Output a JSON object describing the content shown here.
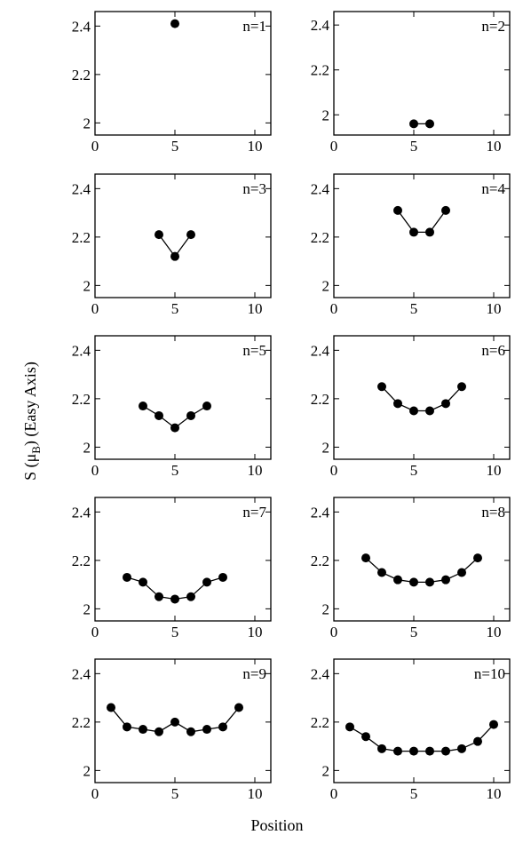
{
  "figure": {
    "ylabel_main": "S (μ",
    "ylabel_sub": "B",
    "ylabel_rest": ") (Easy Axis)",
    "xlabel": "Position"
  },
  "chart_data": [
    {
      "type": "line",
      "label": "n=1",
      "x": [
        5
      ],
      "y": [
        2.41
      ],
      "xlim": [
        0,
        11
      ],
      "ylim": [
        1.95,
        2.46
      ],
      "xticks": [
        0,
        5,
        10
      ],
      "yticks": [
        2.0,
        2.2,
        2.4
      ]
    },
    {
      "type": "line",
      "label": "n=2",
      "x": [
        5,
        6
      ],
      "y": [
        1.96,
        1.96
      ],
      "xlim": [
        0,
        11
      ],
      "ylim": [
        1.91,
        2.46
      ],
      "xticks": [
        0,
        5,
        10
      ],
      "yticks": [
        2.0,
        2.2,
        2.4
      ]
    },
    {
      "type": "line",
      "label": "n=3",
      "x": [
        4,
        5,
        6
      ],
      "y": [
        2.21,
        2.12,
        2.21
      ],
      "xlim": [
        0,
        11
      ],
      "ylim": [
        1.95,
        2.46
      ],
      "xticks": [
        0,
        5,
        10
      ],
      "yticks": [
        2.0,
        2.2,
        2.4
      ]
    },
    {
      "type": "line",
      "label": "n=4",
      "x": [
        4,
        5,
        6,
        7
      ],
      "y": [
        2.31,
        2.22,
        2.22,
        2.31
      ],
      "xlim": [
        0,
        11
      ],
      "ylim": [
        1.95,
        2.46
      ],
      "xticks": [
        0,
        5,
        10
      ],
      "yticks": [
        2.0,
        2.2,
        2.4
      ]
    },
    {
      "type": "line",
      "label": "n=5",
      "x": [
        3,
        4,
        5,
        6,
        7
      ],
      "y": [
        2.17,
        2.13,
        2.08,
        2.13,
        2.17
      ],
      "xlim": [
        0,
        11
      ],
      "ylim": [
        1.95,
        2.46
      ],
      "xticks": [
        0,
        5,
        10
      ],
      "yticks": [
        2.0,
        2.2,
        2.4
      ]
    },
    {
      "type": "line",
      "label": "n=6",
      "x": [
        3,
        4,
        5,
        6,
        7,
        8
      ],
      "y": [
        2.25,
        2.18,
        2.15,
        2.15,
        2.18,
        2.25
      ],
      "xlim": [
        0,
        11
      ],
      "ylim": [
        1.95,
        2.46
      ],
      "xticks": [
        0,
        5,
        10
      ],
      "yticks": [
        2.0,
        2.2,
        2.4
      ]
    },
    {
      "type": "line",
      "label": "n=7",
      "x": [
        2,
        3,
        4,
        5,
        6,
        7,
        8
      ],
      "y": [
        2.13,
        2.11,
        2.05,
        2.04,
        2.05,
        2.11,
        2.13
      ],
      "xlim": [
        0,
        11
      ],
      "ylim": [
        1.95,
        2.46
      ],
      "xticks": [
        0,
        5,
        10
      ],
      "yticks": [
        2.0,
        2.2,
        2.4
      ]
    },
    {
      "type": "line",
      "label": "n=8",
      "x": [
        2,
        3,
        4,
        5,
        6,
        7,
        8,
        9
      ],
      "y": [
        2.21,
        2.15,
        2.12,
        2.11,
        2.11,
        2.12,
        2.15,
        2.21
      ],
      "xlim": [
        0,
        11
      ],
      "ylim": [
        1.95,
        2.46
      ],
      "xticks": [
        0,
        5,
        10
      ],
      "yticks": [
        2.0,
        2.2,
        2.4
      ]
    },
    {
      "type": "line",
      "label": "n=9",
      "x": [
        1,
        2,
        3,
        4,
        5,
        6,
        7,
        8,
        9
      ],
      "y": [
        2.26,
        2.18,
        2.17,
        2.16,
        2.2,
        2.16,
        2.17,
        2.18,
        2.26
      ],
      "xlim": [
        0,
        11
      ],
      "ylim": [
        1.95,
        2.46
      ],
      "xticks": [
        0,
        5,
        10
      ],
      "yticks": [
        2.0,
        2.2,
        2.4
      ]
    },
    {
      "type": "line",
      "label": "n=10",
      "x": [
        1,
        2,
        3,
        4,
        5,
        6,
        7,
        8,
        9,
        10
      ],
      "y": [
        2.18,
        2.14,
        2.09,
        2.08,
        2.08,
        2.08,
        2.08,
        2.09,
        2.12,
        2.19
      ],
      "xlim": [
        0,
        11
      ],
      "ylim": [
        1.95,
        2.46
      ],
      "xticks": [
        0,
        5,
        10
      ],
      "yticks": [
        2.0,
        2.2,
        2.4
      ]
    }
  ]
}
